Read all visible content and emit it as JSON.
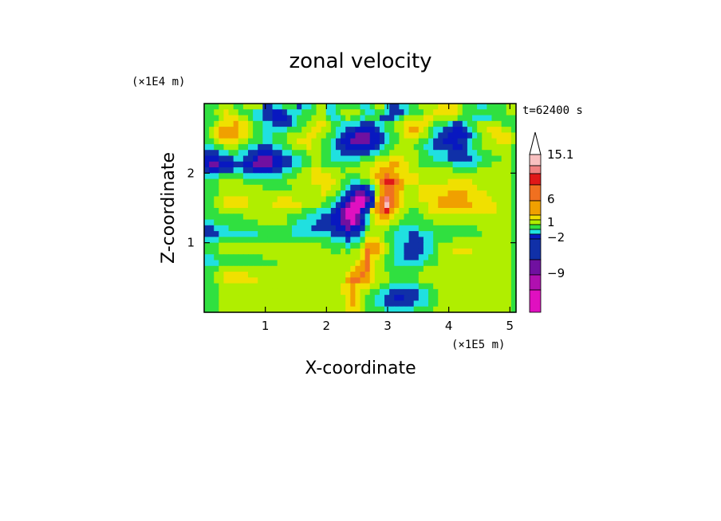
{
  "chart_data": {
    "type": "heatmap",
    "title": "zonal velocity",
    "xlabel": "X-coordinate",
    "ylabel": "Z-coordinate",
    "x_unit": "(x1E4 m)",
    "x_scale_label": "(×1E5 m)",
    "y_scale_label": "(×1E4 m)",
    "time_label": "t=62400 s",
    "xlim": [
      0,
      5.1
    ],
    "ylim": [
      0,
      3.0
    ],
    "x_ticks": [
      1,
      2,
      3,
      4,
      5
    ],
    "x_tick_labels": [
      "1",
      "2",
      "3",
      "4",
      "5"
    ],
    "y_ticks": [
      1,
      2
    ],
    "y_tick_labels": [
      "1",
      "2"
    ],
    "colorbar": {
      "labels": [
        "15.1",
        "6",
        "1",
        "−2",
        "−9"
      ],
      "colors_top_to_bottom": [
        "#ffffff",
        "#f8c0c0",
        "#f08080",
        "#e01818",
        "#f07020",
        "#f0a000",
        "#f0e000",
        "#b0ee00",
        "#30e040",
        "#20e0e0",
        "#0818c0",
        "#1030a8",
        "#7010a0",
        "#b010b0",
        "#e010c0"
      ]
    },
    "field": {
      "nx": 64,
      "nz": 36,
      "rows_top_to_bottom": [
        "5556665566663344555344566445555544566433445566667777655544555566",
        "5566766555443322344455566445666654455433345556677777655555555566",
        "5556777665443322234555666544565545553334566667766666555444455555",
        "5567778776554433334556677655444433344556677777655543345566666555",
        "5678888776554444455566776654433222234556678876544332234566777665",
        "5678888776554455566667766554322111223455677766543322223456677776",
        "5567777665554455566777665543221111223455666655433222334556667776",
        "4455666554433344556667665543322222234556666554433332234556666665",
        "3334455443322233445556665544333333445566666655444433334455566665",
        "2223334433211122334455665544444455566677766655544433333445555665",
        "2112223322111122334455665555555566677788776655555554444455566665",
        "3223334433222233445566776666566666778887776666666665555566666665",
        "4445555544444444555666777766655566788988777766666666666666666665",
        "5556666655555555566666777776554455679aa9877766666677777666666665",
        "5556666666665555556666667766543323468998866677777777777766666665",
        "5556666666666666666666667665432112368998766677777788887777666665",
        "5566777776666667776666666554321001279b98766677778888887777766665",
        "5566777776666677777766665543210002389c98766666778888888777776665",
        "5556666666666666666655544432100023789a87665566777777777777776665",
        "5555555566666666655554443322100134678876655556666666666666666665",
        "4455555555566666655444433322110124677766555555566666666666666665",
        "3344455555555555554444333332212235666655444455555555555566666665",
        "3334444444455555554444444433323346666554443344455555555556666665",
        "4445555555555555555555555544434457776554443334455556666666666665",
        "5556666666666666666666665555545568887654433334456666666666666665",
        "5556666666666666666666666655656679887654433334456667777666666665",
        "4455555555556666666666666666666679776554433344556666666666666665",
        "4445555555555556666666666666666789766554444445556666666666666665",
        "5556666666666666666666666666667889766555555556666666666666666665",
        "5566777776666666666666666666678898766655555566666666666666666665",
        "5566777777766666666666666666689988766655555566666666666666666665",
        "5556666666666666666666666666778777665544444455566666666666666665",
        "5556666666666666666666666666778766554433333344556666666666666665",
        "5556666666666666666666666666678765544332233344556666666666666665",
        "5556666666666666666666666666678765544333333444556666666666666665",
        "5556666666666666666666666666677765555444444555566666666666666665"
      ]
    }
  }
}
